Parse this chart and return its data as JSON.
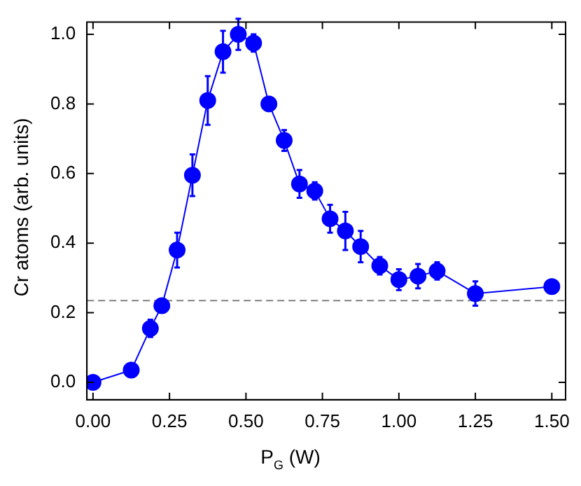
{
  "chart_data": {
    "type": "line",
    "xlabel": "P$_{G}$ (W)",
    "ylabel": "Cr atoms (arb. units)",
    "xlim": [
      -0.02,
      1.545
    ],
    "xticks": [
      {
        "value": 0,
        "label": "0.00"
      },
      0.25,
      {
        "value": 0.5,
        "label": "0.50"
      },
      0.75,
      {
        "value": 1,
        "label": "1.00"
      },
      1.25,
      {
        "value": 1.5,
        "label": "1.50"
      }
    ],
    "ylim": [
      -0.05,
      1.035
    ],
    "yticks": [
      {
        "value": 0,
        "label": "0.0"
      },
      0.2,
      0.4,
      0.6,
      0.8,
      {
        "value": 1,
        "label": "1.0"
      }
    ],
    "grid": false,
    "legend": false,
    "marker": "circle",
    "line_style": "solid",
    "series": [
      {
        "color": "#0000ff",
        "x": [
          0,
          0.125,
          0.1875,
          0.225,
          0.275,
          0.325,
          0.375,
          0.425,
          0.475,
          0.525,
          0.575,
          0.625,
          0.675,
          0.725,
          0.775,
          0.825,
          0.875,
          0.9375,
          1.0,
          1.0625,
          1.125,
          1.25,
          1.5
        ],
        "values": [
          0,
          0.035,
          0.155,
          0.22,
          0.38,
          0.595,
          0.81,
          0.95,
          1.0,
          0.975,
          0.8,
          0.695,
          0.57,
          0.55,
          0.47,
          0.435,
          0.39,
          0.335,
          0.295,
          0.305,
          0.32,
          0.255,
          0.275
        ],
        "errors": [
          null,
          null,
          0.025,
          null,
          0.05,
          0.06,
          0.07,
          0.06,
          0.045,
          0.025,
          0.02,
          0.03,
          0.04,
          0.025,
          0.04,
          0.055,
          0.045,
          0.025,
          0.03,
          0.035,
          0.025,
          0.035,
          null
        ]
      }
    ],
    "ref_lines": [
      {
        "axis": "y",
        "value": 0.235,
        "color": "#808080",
        "line_style": "dashed"
      }
    ]
  }
}
